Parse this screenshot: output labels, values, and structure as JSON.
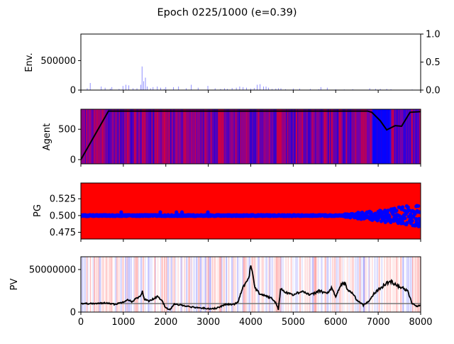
{
  "title": "Epoch 0225/1000 (e=0.39)",
  "x_range": [
    0,
    8000
  ],
  "x_ticks": [
    0,
    1000,
    2000,
    3000,
    4000,
    5000,
    6000,
    7000,
    8000
  ],
  "chart_data": [
    {
      "type": "bar",
      "ylabel": "Env.",
      "ylim": [
        0,
        950000
      ],
      "y_ticks": [
        0,
        500000
      ],
      "right_ticks": [
        "0.0",
        "0.5",
        "1.0"
      ],
      "right_ylim": [
        0,
        1
      ],
      "color": "#0000ff",
      "spikes": [
        [
          150,
          30000
        ],
        [
          220,
          120000
        ],
        [
          480,
          60000
        ],
        [
          570,
          40000
        ],
        [
          690,
          25000
        ],
        [
          730,
          50000
        ],
        [
          900,
          20000
        ],
        [
          990,
          70000
        ],
        [
          1060,
          90000
        ],
        [
          1130,
          80000
        ],
        [
          1230,
          30000
        ],
        [
          1320,
          30000
        ],
        [
          1410,
          90000
        ],
        [
          1440,
          400000
        ],
        [
          1480,
          150000
        ],
        [
          1520,
          210000
        ],
        [
          1560,
          60000
        ],
        [
          1640,
          30000
        ],
        [
          1700,
          50000
        ],
        [
          1800,
          60000
        ],
        [
          1880,
          40000
        ],
        [
          1960,
          20000
        ],
        [
          2000,
          50000
        ],
        [
          2180,
          50000
        ],
        [
          2300,
          60000
        ],
        [
          2480,
          30000
        ],
        [
          2600,
          90000
        ],
        [
          2760,
          40000
        ],
        [
          2990,
          70000
        ],
        [
          3160,
          30000
        ],
        [
          3290,
          20000
        ],
        [
          3380,
          30000
        ],
        [
          3450,
          20000
        ],
        [
          3560,
          35000
        ],
        [
          3660,
          40000
        ],
        [
          3740,
          60000
        ],
        [
          3820,
          50000
        ],
        [
          3900,
          40000
        ],
        [
          4000,
          25000
        ],
        [
          4080,
          35000
        ],
        [
          4150,
          90000
        ],
        [
          4220,
          100000
        ],
        [
          4300,
          60000
        ],
        [
          4360,
          60000
        ],
        [
          4420,
          40000
        ],
        [
          4500,
          20000
        ],
        [
          4590,
          25000
        ],
        [
          4650,
          30000
        ],
        [
          4710,
          30000
        ],
        [
          4820,
          15000
        ],
        [
          5000,
          25000
        ],
        [
          5150,
          25000
        ],
        [
          5400,
          20000
        ],
        [
          5600,
          15000
        ],
        [
          5650,
          50000
        ],
        [
          5800,
          40000
        ],
        [
          6000,
          15000
        ],
        [
          6200,
          10000
        ],
        [
          6400,
          15000
        ],
        [
          6800,
          30000
        ],
        [
          6940,
          20000
        ],
        [
          7050,
          20000
        ],
        [
          7200,
          20000
        ],
        [
          7300,
          15000
        ],
        [
          7800,
          10000
        ]
      ]
    },
    {
      "type": "line",
      "ylabel": "Agent",
      "ylim": [
        -70,
        830
      ],
      "y_ticks": [
        0,
        500
      ],
      "background": "stripes",
      "line_color": "#000000",
      "x": [
        0,
        650,
        6750,
        6850,
        7050,
        7200,
        7400,
        7550,
        7750,
        8000
      ],
      "y": [
        0,
        800,
        800,
        780,
        640,
        490,
        560,
        550,
        780,
        790
      ]
    },
    {
      "type": "scatter",
      "ylabel": "PG",
      "ylim": [
        0.465,
        0.5485
      ],
      "y_ticks": [
        0.475,
        0.5,
        0.525
      ],
      "tick_labels": [
        "0.475",
        "0.500",
        "0.525"
      ],
      "background_color": "#ff0000",
      "marker_color": "#0000ff",
      "base_value": 0.5,
      "outliers": [
        [
          950,
          0.505
        ],
        [
          1870,
          0.505
        ],
        [
          2250,
          0.505
        ],
        [
          2380,
          0.505
        ],
        [
          2990,
          0.505
        ]
      ],
      "noisy_from": 6200
    },
    {
      "type": "line",
      "ylabel": "PV",
      "ylim": [
        0,
        65000000
      ],
      "y_ticks": [
        0,
        50000000
      ],
      "reference_value": 10000000,
      "line_color": "#000000",
      "x": [
        0,
        400,
        600,
        800,
        1000,
        1100,
        1200,
        1300,
        1400,
        1450,
        1500,
        1600,
        1800,
        1900,
        2000,
        2100,
        2200,
        2400,
        2600,
        2800,
        3000,
        3200,
        3400,
        3600,
        3700,
        3800,
        3850,
        3900,
        3950,
        4000,
        4050,
        4100,
        4200,
        4300,
        4400,
        4500,
        4600,
        4650,
        4700,
        4800,
        5000,
        5200,
        5400,
        5500,
        5600,
        5800,
        5900,
        6000,
        6100,
        6200,
        6300,
        6400,
        6500,
        6600,
        6650,
        6700,
        6800,
        6900,
        7000,
        7100,
        7200,
        7300,
        7400,
        7500,
        7600,
        7700,
        7800,
        7900,
        8000
      ],
      "y": [
        10000000,
        10000000,
        11000000,
        9000000,
        12000000,
        15000000,
        12000000,
        16000000,
        18000000,
        24000000,
        15000000,
        13000000,
        18000000,
        14000000,
        5000000,
        3000000,
        9000000,
        8000000,
        6000000,
        5000000,
        4000000,
        4500000,
        9000000,
        9000000,
        12000000,
        28000000,
        32000000,
        35000000,
        40000000,
        55000000,
        45000000,
        28000000,
        22000000,
        20000000,
        18000000,
        16000000,
        10000000,
        3000000,
        27000000,
        24000000,
        20000000,
        25000000,
        20000000,
        22000000,
        25000000,
        22000000,
        28000000,
        18000000,
        30000000,
        35000000,
        25000000,
        22000000,
        14000000,
        10000000,
        8000000,
        10000000,
        14000000,
        22000000,
        26000000,
        30000000,
        34000000,
        36000000,
        33000000,
        30000000,
        28000000,
        24000000,
        10000000,
        7000000,
        8000000
      ]
    }
  ]
}
